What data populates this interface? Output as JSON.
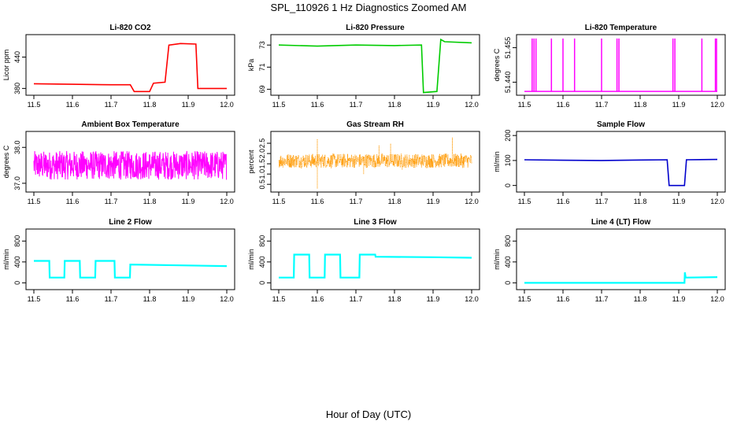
{
  "figure": {
    "title": "SPL_110926  1 Hz Diagnostics Zoomed AM",
    "xlabel": "Hour of Day (UTC)"
  },
  "chart_data": [
    {
      "type": "line",
      "title": "Li-820 CO2",
      "ylabel": "Licor ppm",
      "color": "#ff0000",
      "xlim": [
        11.5,
        12.0
      ],
      "ylim": [
        370,
        480
      ],
      "yticks": [
        "380",
        "440"
      ],
      "xticks": [
        "11.5",
        "11.6",
        "11.7",
        "11.8",
        "11.9",
        "12.0"
      ],
      "series": [
        {
          "x": [
            11.5,
            11.6,
            11.7,
            11.75,
            11.76,
            11.8,
            11.81,
            11.84,
            11.85,
            11.88,
            11.92,
            11.925,
            12.0
          ],
          "y": [
            389,
            388,
            387,
            387,
            374,
            374,
            390,
            392,
            463,
            466,
            465,
            380,
            380
          ]
        }
      ]
    },
    {
      "type": "line",
      "title": "Li-820 Pressure",
      "ylabel": "kPa",
      "color": "#00cc00",
      "xlim": [
        11.5,
        12.0
      ],
      "ylim": [
        68.6,
        73.8
      ],
      "yticks": [
        "69",
        "71",
        "73"
      ],
      "xticks": [
        "11.5",
        "11.6",
        "11.7",
        "11.8",
        "11.9",
        "12.0"
      ],
      "series": [
        {
          "x": [
            11.5,
            11.6,
            11.7,
            11.8,
            11.87,
            11.875,
            11.91,
            11.92,
            11.93,
            12.0
          ],
          "y": [
            73.0,
            72.9,
            73.0,
            72.95,
            73.0,
            68.7,
            68.8,
            73.5,
            73.3,
            73.2
          ]
        }
      ]
    },
    {
      "type": "line",
      "title": "Li-820 Temperature",
      "ylabel": "degrees C",
      "color": "#ff00ff",
      "xlim": [
        11.5,
        12.0
      ],
      "ylim": [
        51.435,
        51.46
      ],
      "yticks": [
        "51.440",
        "51.455"
      ],
      "xticks": [
        "11.5",
        "11.6",
        "11.7",
        "11.8",
        "11.9",
        "12.0"
      ],
      "series": [
        {
          "baseline": 51.436,
          "spike_high": 51.459,
          "spikes": [
            11.52,
            11.525,
            11.53,
            11.57,
            11.6,
            11.63,
            11.7,
            11.74,
            11.745,
            11.885,
            11.89,
            11.96,
            11.995,
            11.998
          ]
        }
      ]
    },
    {
      "type": "line",
      "title": "Ambient Box Temperature",
      "ylabel": "degrees C",
      "color": "#ff00ff",
      "xlim": [
        11.5,
        12.0
      ],
      "ylim": [
        36.8,
        38.4
      ],
      "yticks": [
        "37.0",
        "38.0"
      ],
      "xticks": [
        "11.5",
        "11.6",
        "11.7",
        "11.8",
        "11.9",
        "12.0"
      ],
      "series": [
        {
          "noise_center": 37.5,
          "noise_half_range": 0.4
        }
      ]
    },
    {
      "type": "scatter",
      "title": "Gas Stream RH",
      "ylabel": "percent",
      "color": "#ff9900",
      "xlim": [
        11.5,
        12.0
      ],
      "ylim": [
        0.2,
        3.0
      ],
      "yticks": [
        "0.5",
        "1.0",
        "1.5",
        "2.0",
        "2.5"
      ],
      "xticks": [
        "11.5",
        "11.6",
        "11.7",
        "11.8",
        "11.9",
        "12.0"
      ],
      "series": [
        {
          "noise_center": 1.65,
          "noise_half_range": 0.35,
          "outliers": [
            [
              11.6,
              2.7
            ],
            [
              11.6,
              0.3
            ],
            [
              11.72,
              1.0
            ],
            [
              11.76,
              2.4
            ],
            [
              11.79,
              2.5
            ],
            [
              11.95,
              2.8
            ],
            [
              11.82,
              1.2
            ]
          ]
        }
      ]
    },
    {
      "type": "line",
      "title": "Sample Flow",
      "ylabel": "ml/min",
      "color": "#0000cc",
      "xlim": [
        11.5,
        12.0
      ],
      "ylim": [
        -20,
        210
      ],
      "yticks": [
        "0",
        "100",
        "200"
      ],
      "xticks": [
        "11.5",
        "11.6",
        "11.7",
        "11.8",
        "11.9",
        "12.0"
      ],
      "series": [
        {
          "x": [
            11.5,
            11.6,
            11.7,
            11.8,
            11.87,
            11.875,
            11.915,
            11.92,
            12.0
          ],
          "y": [
            103,
            101,
            100,
            102,
            103,
            0,
            0,
            103,
            104
          ]
        }
      ]
    },
    {
      "type": "line",
      "title": "Line 2 Flow",
      "ylabel": "ml/min",
      "color": "#00ffff",
      "xlim": [
        11.5,
        12.0
      ],
      "ylim": [
        -100,
        1000
      ],
      "yticks": [
        "0",
        "400",
        "800"
      ],
      "xticks": [
        "11.5",
        "11.6",
        "11.7",
        "11.8",
        "11.9",
        "12.0"
      ],
      "series": [
        {
          "x": [
            11.5,
            11.54,
            11.541,
            11.579,
            11.58,
            11.619,
            11.62,
            11.659,
            11.66,
            11.709,
            11.71,
            11.749,
            11.75,
            12.0
          ],
          "y": [
            420,
            420,
            100,
            100,
            420,
            420,
            100,
            100,
            420,
            420,
            100,
            100,
            350,
            320
          ]
        }
      ]
    },
    {
      "type": "line",
      "title": "Line 3 Flow",
      "ylabel": "ml/min",
      "color": "#00ffff",
      "xlim": [
        11.5,
        12.0
      ],
      "ylim": [
        -100,
        1000
      ],
      "yticks": [
        "0",
        "400",
        "800"
      ],
      "xticks": [
        "11.5",
        "11.6",
        "11.7",
        "11.8",
        "11.9",
        "12.0"
      ],
      "series": [
        {
          "x": [
            11.5,
            11.539,
            11.54,
            11.579,
            11.58,
            11.619,
            11.62,
            11.659,
            11.66,
            11.709,
            11.71,
            11.75,
            11.751,
            11.9,
            12.0
          ],
          "y": [
            100,
            100,
            540,
            540,
            100,
            100,
            540,
            540,
            100,
            100,
            540,
            540,
            500,
            490,
            480
          ]
        }
      ]
    },
    {
      "type": "line",
      "title": "Line 4 (LT) Flow",
      "ylabel": "ml/min",
      "color": "#00ffff",
      "xlim": [
        11.5,
        12.0
      ],
      "ylim": [
        -100,
        1000
      ],
      "yticks": [
        "0",
        "400",
        "800"
      ],
      "xticks": [
        "11.5",
        "11.6",
        "11.7",
        "11.8",
        "11.9",
        "12.0"
      ],
      "series": [
        {
          "x": [
            11.5,
            11.9,
            11.915,
            11.916,
            11.918,
            11.92,
            12.0
          ],
          "y": [
            0,
            0,
            0,
            200,
            100,
            100,
            110
          ]
        }
      ]
    }
  ]
}
